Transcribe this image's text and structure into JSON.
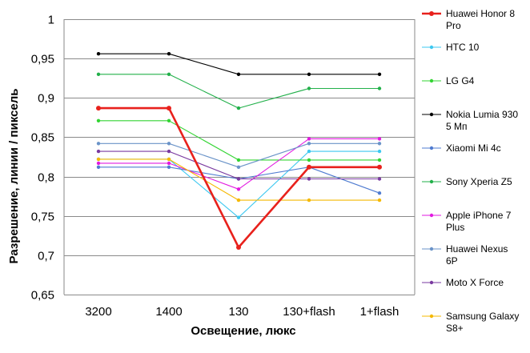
{
  "chart_data": {
    "type": "line",
    "xlabel": "Освещение,  люкс",
    "ylabel": "Разрешение,  линии / пиксель",
    "categories": [
      "3200",
      "1400",
      "130",
      "130+flash",
      "1+flash"
    ],
    "ylim": [
      0.65,
      1.0
    ],
    "yticks": [
      "0,65",
      "0,7",
      "0,75",
      "0,8",
      "0,85",
      "0,9",
      "0,95",
      "1"
    ],
    "grid": true,
    "legend_position": "right",
    "series": [
      {
        "name": "Huawei Honor 8 Pro",
        "name_lines": [
          "Huawei Honor 8",
          "Pro"
        ],
        "color": "#e8211c",
        "bold": true,
        "values": [
          0.887,
          0.887,
          0.71,
          0.812,
          0.812
        ]
      },
      {
        "name": "HTC 10",
        "name_lines": [
          "HTC 10"
        ],
        "color": "#3dc8f0",
        "values": [
          0.822,
          0.822,
          0.748,
          0.832,
          0.832
        ]
      },
      {
        "name": "LG G4",
        "name_lines": [
          "LG G4"
        ],
        "color": "#33d433",
        "values": [
          0.871,
          0.871,
          0.821,
          0.821,
          0.821
        ]
      },
      {
        "name": "Nokia Lumia 930 5 Мп",
        "name_lines": [
          "Nokia Lumia 930",
          "5 Мп"
        ],
        "color": "#000000",
        "values": [
          0.956,
          0.956,
          0.93,
          0.93,
          0.93
        ]
      },
      {
        "name": "Xiaomi Mi 4c",
        "name_lines": [
          "Xiaomi Mi 4c"
        ],
        "color": "#4f7bd0",
        "values": [
          0.812,
          0.812,
          0.797,
          0.812,
          0.779
        ]
      },
      {
        "name": "Sony Xperia Z5",
        "name_lines": [
          "Sony Xperia Z5"
        ],
        "color": "#22b04a",
        "values": [
          0.93,
          0.93,
          0.887,
          0.912,
          0.912
        ]
      },
      {
        "name": "Apple iPhone 7 Plus",
        "name_lines": [
          "Apple iPhone 7",
          "Plus"
        ],
        "color": "#e21ae0",
        "values": [
          0.817,
          0.817,
          0.784,
          0.848,
          0.848
        ]
      },
      {
        "name": "Huawei Nexus 6P",
        "name_lines": [
          "Huawei Nexus",
          "6P"
        ],
        "color": "#6a93c8",
        "values": [
          0.842,
          0.842,
          0.812,
          0.842,
          0.842
        ]
      },
      {
        "name": "Moto X Force",
        "name_lines": [
          "Moto X Force"
        ],
        "color": "#7a3aa0",
        "values": [
          0.832,
          0.832,
          0.797,
          0.797,
          0.797
        ]
      },
      {
        "name": "Samsung Galaxy S8+",
        "name_lines": [
          "Samsung Galaxy",
          "S8+"
        ],
        "color": "#f5b800",
        "values": [
          0.822,
          0.822,
          0.77,
          0.77,
          0.77
        ]
      }
    ]
  }
}
